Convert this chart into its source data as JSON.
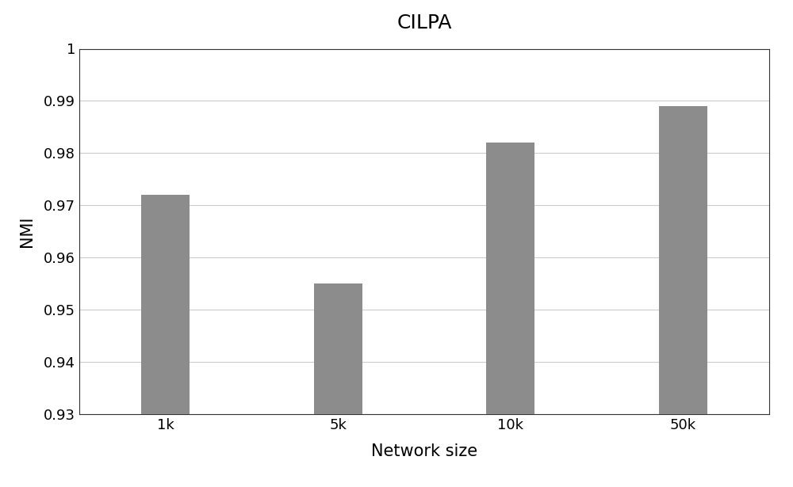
{
  "categories": [
    "1k",
    "5k",
    "10k",
    "50k"
  ],
  "values": [
    0.972,
    0.955,
    0.982,
    0.989
  ],
  "bar_color": "#8c8c8c",
  "title": "CILPA",
  "xlabel": "Network size",
  "ylabel": "NMI",
  "ylim": [
    0.93,
    1.0
  ],
  "yticks": [
    0.93,
    0.94,
    0.95,
    0.96,
    0.97,
    0.98,
    0.99,
    1.0
  ],
  "title_fontsize": 18,
  "label_fontsize": 15,
  "tick_fontsize": 13,
  "bar_width": 0.28,
  "background_color": "#ffffff",
  "grid_color": "#cccccc",
  "spine_color": "#333333"
}
